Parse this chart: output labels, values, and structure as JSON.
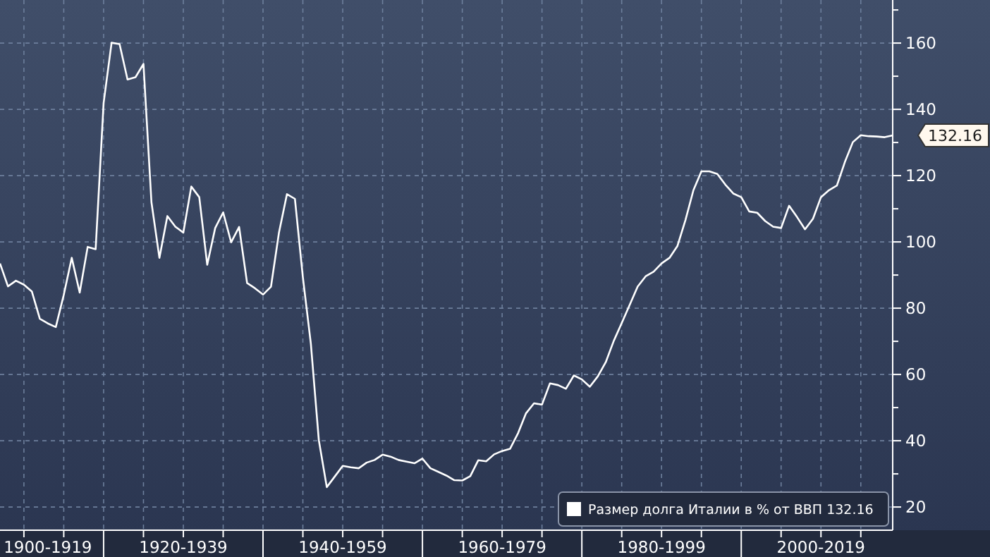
{
  "chart_data": {
    "type": "line",
    "categories": [
      null,
      null,
      null,
      null,
      null,
      null,
      "1900-1919",
      null,
      null,
      null,
      null,
      null,
      null,
      null,
      null,
      null,
      null,
      null,
      null,
      null,
      null,
      null,
      null,
      "1920-1939",
      null,
      null,
      null,
      null,
      null,
      null,
      null,
      null,
      null,
      null,
      null,
      null,
      null,
      null,
      null,
      null,
      null,
      null,
      null,
      "1940-1959",
      null,
      null,
      null,
      null,
      null,
      null,
      null,
      null,
      null,
      null,
      null,
      null,
      null,
      null,
      null,
      null,
      null,
      null,
      null,
      "1960-1979",
      null,
      null,
      null,
      null,
      null,
      null,
      null,
      null,
      null,
      null,
      null,
      null,
      null,
      null,
      null,
      null,
      null,
      null,
      null,
      "1980-1999",
      null,
      null,
      null,
      null,
      null,
      null,
      null,
      null,
      null,
      null,
      null,
      null,
      null,
      null,
      null,
      null,
      null,
      null,
      null,
      "2000-2019",
      null,
      null,
      null,
      null,
      null,
      null,
      null,
      null,
      null
    ],
    "series": [
      {
        "name": "Размер долга Италии в % от ВВП 132.16",
        "color": "#ffffff",
        "values": [
          93.5,
          86.6,
          88.3,
          87.1,
          85,
          76.8,
          75.4,
          74.3,
          84,
          95.2,
          84.7,
          98.5,
          97.8,
          141.9,
          160.1,
          159.7,
          149,
          149.7,
          153.7,
          112,
          95.2,
          107.8,
          104.6,
          102.8,
          116.7,
          113.5,
          93.1,
          104.2,
          108.9,
          99.9,
          104.5,
          87.6,
          86,
          84.1,
          86.5,
          102.8,
          114.4,
          113,
          89.3,
          69.3,
          40.2,
          26,
          29.2,
          32.4,
          32,
          31.7,
          33.4,
          34.2,
          35.8,
          35.2,
          34.2,
          33.7,
          33.2,
          34.6,
          31.7,
          30.6,
          29.5,
          28.1,
          28,
          29.3,
          34.1,
          33.8,
          35.9,
          36.9,
          37.6,
          42.3,
          48.3,
          51.3,
          50.9,
          57.3,
          56.8,
          55.7,
          59.7,
          58.5,
          56.3,
          59.4,
          63.7,
          70.1,
          75.5,
          81,
          86.5,
          89.6,
          91,
          93.5,
          95.2,
          98.8,
          106.6,
          115.6,
          121.3,
          121.3,
          120.5,
          117.3,
          114.6,
          113.5,
          109.2,
          108.8,
          106.3,
          104.6,
          104.2,
          110.9,
          107.5,
          103.8,
          107,
          113.5,
          115.6,
          117,
          124.1,
          130.1,
          132.2,
          131.9,
          131.8,
          131.6,
          132.16
        ]
      }
    ],
    "ylim": [
      13,
      173
    ],
    "yticks": [
      20,
      {
        "value": 30,
        "label": null
      },
      40,
      {
        "value": 50,
        "label": null
      },
      60,
      {
        "value": 70,
        "label": null
      },
      80,
      {
        "value": 90,
        "label": null
      },
      100,
      {
        "value": 110,
        "label": null
      },
      120,
      {
        "value": 130,
        "label": null
      },
      140,
      {
        "value": 150,
        "label": null
      },
      160,
      {
        "value": 170,
        "label": null
      }
    ],
    "grid": true,
    "legend": "bottom right",
    "line_style": "solid",
    "annotations": [
      "132.16"
    ]
  }
}
